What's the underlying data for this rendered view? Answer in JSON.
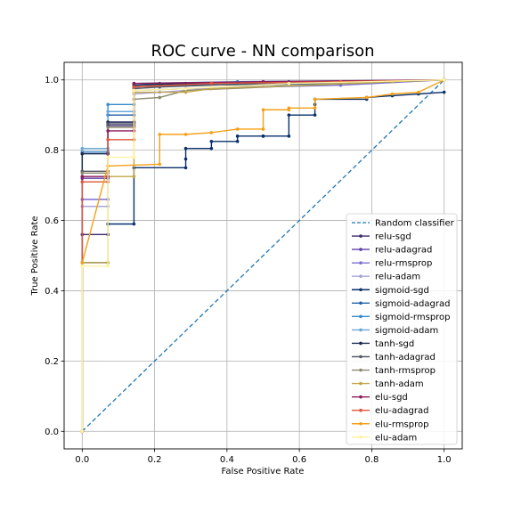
{
  "chart_data": {
    "type": "line",
    "title": "ROC curve - NN comparison",
    "xlabel": "False Positive Rate",
    "ylabel": "True Positive Rate",
    "xlim": [
      -0.05,
      1.05
    ],
    "ylim": [
      -0.05,
      1.05
    ],
    "xticks": [
      0.0,
      0.2,
      0.4,
      0.6,
      0.8,
      1.0
    ],
    "yticks": [
      0.0,
      0.2,
      0.4,
      0.6,
      0.8,
      1.0
    ],
    "xtick_labels": [
      "0.0",
      "0.2",
      "0.4",
      "0.6",
      "0.8",
      "1.0"
    ],
    "ytick_labels": [
      "0.0",
      "0.2",
      "0.4",
      "0.6",
      "0.8",
      "1.0"
    ],
    "grid": true,
    "legend_position": "lower-right",
    "reference_line": {
      "name": "Random classifier",
      "color": "#1f77b4",
      "dash": true,
      "points": [
        [
          0,
          0
        ],
        [
          1,
          1
        ]
      ]
    },
    "series": [
      {
        "name": "relu-sgd",
        "color": "#3d2a6b",
        "points": [
          [
            0,
            0
          ],
          [
            0,
            0.56
          ],
          [
            0.071,
            0.56
          ],
          [
            0.071,
            0.87
          ],
          [
            0.143,
            0.87
          ],
          [
            0.143,
            0.99
          ],
          [
            0.214,
            0.99
          ],
          [
            0.286,
            0.99
          ],
          [
            0.571,
            0.995
          ],
          [
            1.0,
            1.0
          ]
        ]
      },
      {
        "name": "relu-adagrad",
        "color": "#5b3fa8",
        "points": [
          [
            0,
            0
          ],
          [
            0,
            0.72
          ],
          [
            0.071,
            0.72
          ],
          [
            0.071,
            0.88
          ],
          [
            0.143,
            0.88
          ],
          [
            0.143,
            0.98
          ],
          [
            0.286,
            0.985
          ],
          [
            0.643,
            0.99
          ],
          [
            1.0,
            1.0
          ]
        ]
      },
      {
        "name": "relu-rmsprop",
        "color": "#7b6fd0",
        "points": [
          [
            0,
            0
          ],
          [
            0,
            0.66
          ],
          [
            0.071,
            0.66
          ],
          [
            0.071,
            0.875
          ],
          [
            0.143,
            0.875
          ],
          [
            0.143,
            0.97
          ],
          [
            0.286,
            0.975
          ],
          [
            0.714,
            0.985
          ],
          [
            1.0,
            1.0
          ]
        ]
      },
      {
        "name": "relu-adam",
        "color": "#a8a4d9",
        "points": [
          [
            0,
            0
          ],
          [
            0,
            0.64
          ],
          [
            0.071,
            0.64
          ],
          [
            0.071,
            0.88
          ],
          [
            0.143,
            0.88
          ],
          [
            0.143,
            0.96
          ],
          [
            0.214,
            0.965
          ],
          [
            0.5,
            0.985
          ],
          [
            1.0,
            1.0
          ]
        ]
      },
      {
        "name": "sigmoid-sgd",
        "color": "#08306b",
        "points": [
          [
            0,
            0
          ],
          [
            0,
            0.48
          ],
          [
            0.071,
            0.48
          ],
          [
            0.071,
            0.59
          ],
          [
            0.143,
            0.59
          ],
          [
            0.143,
            0.75
          ],
          [
            0.286,
            0.75
          ],
          [
            0.286,
            0.775
          ],
          [
            0.286,
            0.805
          ],
          [
            0.357,
            0.805
          ],
          [
            0.357,
            0.825
          ],
          [
            0.429,
            0.825
          ],
          [
            0.429,
            0.84
          ],
          [
            0.5,
            0.84
          ],
          [
            0.5,
            0.84
          ],
          [
            0.571,
            0.84
          ],
          [
            0.571,
            0.9
          ],
          [
            0.643,
            0.9
          ],
          [
            0.643,
            0.93
          ],
          [
            0.643,
            0.945
          ],
          [
            0.786,
            0.945
          ],
          [
            0.786,
            0.95
          ],
          [
            0.857,
            0.955
          ],
          [
            0.929,
            0.96
          ],
          [
            1.0,
            0.965
          ]
        ]
      },
      {
        "name": "sigmoid-adagrad",
        "color": "#1f5fa8",
        "points": [
          [
            0,
            0
          ],
          [
            0,
            0.79
          ],
          [
            0.071,
            0.79
          ],
          [
            0.071,
            0.9
          ],
          [
            0.143,
            0.9
          ],
          [
            0.143,
            0.98
          ],
          [
            0.286,
            0.985
          ],
          [
            0.714,
            0.99
          ],
          [
            1.0,
            1.0
          ]
        ]
      },
      {
        "name": "sigmoid-rmsprop",
        "color": "#3a8bd0",
        "points": [
          [
            0,
            0
          ],
          [
            0,
            0.795
          ],
          [
            0.071,
            0.795
          ],
          [
            0.071,
            0.93
          ],
          [
            0.143,
            0.93
          ],
          [
            0.143,
            0.99
          ],
          [
            0.429,
            0.995
          ],
          [
            1.0,
            1.0
          ]
        ]
      },
      {
        "name": "sigmoid-adam",
        "color": "#6aa8d8",
        "points": [
          [
            0,
            0
          ],
          [
            0,
            0.805
          ],
          [
            0.071,
            0.805
          ],
          [
            0.071,
            0.91
          ],
          [
            0.143,
            0.91
          ],
          [
            0.143,
            0.985
          ],
          [
            0.357,
            0.99
          ],
          [
            1.0,
            1.0
          ]
        ]
      },
      {
        "name": "tanh-sgd",
        "color": "#1b2a4e",
        "points": [
          [
            0,
            0
          ],
          [
            0,
            0.79
          ],
          [
            0.071,
            0.79
          ],
          [
            0.071,
            0.88
          ],
          [
            0.143,
            0.88
          ],
          [
            0.143,
            0.985
          ],
          [
            0.286,
            0.99
          ],
          [
            0.857,
            0.995
          ],
          [
            1.0,
            1.0
          ]
        ]
      },
      {
        "name": "tanh-adagrad",
        "color": "#555a66",
        "points": [
          [
            0,
            0
          ],
          [
            0,
            0.74
          ],
          [
            0.071,
            0.74
          ],
          [
            0.071,
            0.875
          ],
          [
            0.143,
            0.875
          ],
          [
            0.143,
            0.975
          ],
          [
            0.214,
            0.98
          ],
          [
            0.5,
            0.99
          ],
          [
            1.0,
            1.0
          ]
        ]
      },
      {
        "name": "tanh-rmsprop",
        "color": "#8c8a6e",
        "points": [
          [
            0,
            0
          ],
          [
            0,
            0.735
          ],
          [
            0.071,
            0.735
          ],
          [
            0.071,
            0.865
          ],
          [
            0.143,
            0.865
          ],
          [
            0.143,
            0.945
          ],
          [
            0.214,
            0.95
          ],
          [
            0.286,
            0.97
          ],
          [
            0.857,
            0.995
          ],
          [
            1.0,
            1.0
          ]
        ]
      },
      {
        "name": "tanh-adam",
        "color": "#c2a64a",
        "points": [
          [
            0,
            0
          ],
          [
            0,
            0.48
          ],
          [
            0.071,
            0.48
          ],
          [
            0.071,
            0.725
          ],
          [
            0.143,
            0.725
          ],
          [
            0.143,
            0.965
          ],
          [
            0.286,
            0.965
          ],
          [
            0.357,
            0.975
          ],
          [
            0.857,
            0.995
          ],
          [
            1.0,
            1.0
          ]
        ]
      },
      {
        "name": "elu-sgd",
        "color": "#8e1b5a",
        "points": [
          [
            0,
            0
          ],
          [
            0,
            0.725
          ],
          [
            0.071,
            0.725
          ],
          [
            0.071,
            0.855
          ],
          [
            0.143,
            0.855
          ],
          [
            0.143,
            0.99
          ],
          [
            0.5,
            0.995
          ],
          [
            1.0,
            1.0
          ]
        ]
      },
      {
        "name": "elu-adagrad",
        "color": "#e0553a",
        "points": [
          [
            0,
            0
          ],
          [
            0,
            0.71
          ],
          [
            0.071,
            0.71
          ],
          [
            0.071,
            0.83
          ],
          [
            0.143,
            0.83
          ],
          [
            0.143,
            0.98
          ],
          [
            0.357,
            0.99
          ],
          [
            0.714,
            0.995
          ],
          [
            1.0,
            1.0
          ]
        ]
      },
      {
        "name": "elu-rmsprop",
        "color": "#f5a017",
        "points": [
          [
            0,
            0
          ],
          [
            0,
            0.48
          ],
          [
            0.071,
            0.755
          ],
          [
            0.214,
            0.76
          ],
          [
            0.214,
            0.845
          ],
          [
            0.286,
            0.845
          ],
          [
            0.357,
            0.85
          ],
          [
            0.429,
            0.86
          ],
          [
            0.5,
            0.86
          ],
          [
            0.5,
            0.86
          ],
          [
            0.5,
            0.915
          ],
          [
            0.571,
            0.915
          ],
          [
            0.571,
            0.92
          ],
          [
            0.643,
            0.92
          ],
          [
            0.643,
            0.945
          ],
          [
            0.786,
            0.95
          ],
          [
            0.857,
            0.96
          ],
          [
            0.929,
            0.965
          ],
          [
            1.0,
            1.0
          ]
        ]
      },
      {
        "name": "elu-adam",
        "color": "#fff3a0",
        "points": [
          [
            0,
            0
          ],
          [
            0,
            0.47
          ],
          [
            0.071,
            0.47
          ],
          [
            0.071,
            0.78
          ],
          [
            0.143,
            0.78
          ],
          [
            0.143,
            0.97
          ],
          [
            0.286,
            0.975
          ],
          [
            0.571,
            0.99
          ],
          [
            1.0,
            1.0
          ]
        ]
      }
    ]
  }
}
